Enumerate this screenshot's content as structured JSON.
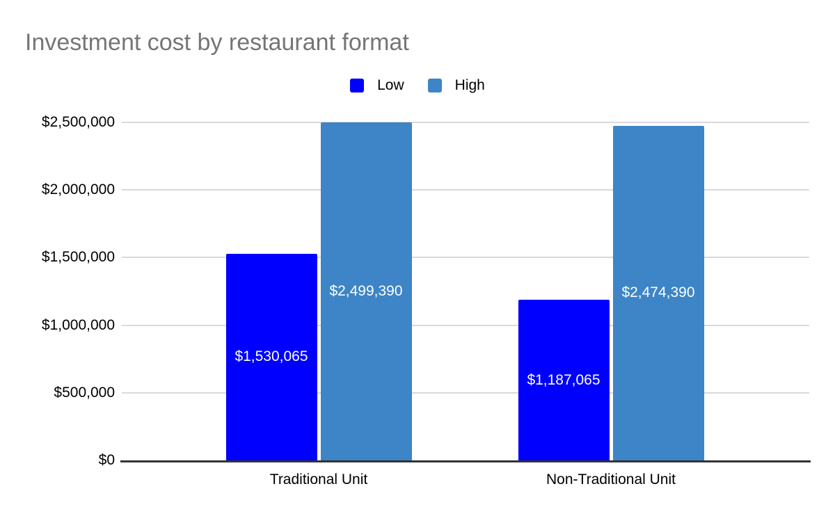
{
  "chart_data": {
    "type": "bar",
    "title": "Investment cost by restaurant format",
    "categories": [
      "Traditional Unit",
      "Non-Traditional Unit"
    ],
    "series": [
      {
        "name": "Low",
        "color": "#0000ff",
        "values": [
          1530065,
          1187065
        ],
        "data_labels": [
          "$1,530,065",
          "$1,187,065"
        ]
      },
      {
        "name": "High",
        "color": "#3d85c6",
        "values": [
          2499390,
          2474390
        ],
        "data_labels": [
          "$2,499,390",
          "$2,474,390"
        ]
      }
    ],
    "y_axis": {
      "max": 2500000,
      "ticks": [
        {
          "label": "$0",
          "value": 0
        },
        {
          "label": "$500,000",
          "value": 500000
        },
        {
          "label": "$1,000,000",
          "value": 1000000
        },
        {
          "label": "$1,500,000",
          "value": 1500000
        },
        {
          "label": "$2,000,000",
          "value": 2000000
        },
        {
          "label": "$2,500,000",
          "value": 2500000
        }
      ]
    },
    "legend_position": "top",
    "grid": true,
    "colors": {
      "title_text": "#757575",
      "axis_text": "#000000",
      "gridline": "#d9d9d9",
      "baseline": "#333333",
      "data_label_text": "#ffffff",
      "background": "#ffffff"
    }
  }
}
